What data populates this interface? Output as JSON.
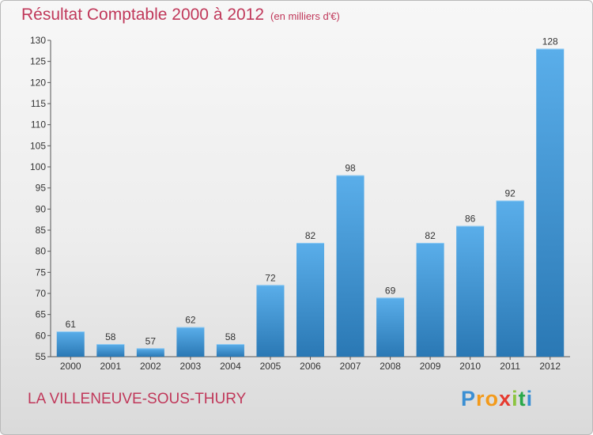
{
  "chart_data": {
    "type": "bar",
    "title": "Résultat Comptable 2000 à 2012",
    "subtitle": "(en milliers d'€)",
    "categories": [
      "2000",
      "2001",
      "2002",
      "2003",
      "2004",
      "2005",
      "2006",
      "2007",
      "2008",
      "2009",
      "2010",
      "2011",
      "2012"
    ],
    "values": [
      61,
      58,
      57,
      62,
      58,
      72,
      82,
      98,
      69,
      82,
      86,
      92,
      128
    ],
    "xlabel": "",
    "ylabel": "",
    "ylim": [
      55,
      130
    ],
    "yticks": [
      55,
      60,
      65,
      70,
      75,
      80,
      85,
      90,
      95,
      100,
      105,
      110,
      115,
      120,
      125,
      130
    ],
    "grid": false
  },
  "footer": {
    "place": "LA VILLENEUVE-SOUS-THURY",
    "logo_letters": [
      "P",
      "r",
      "o",
      "x",
      "i",
      "t",
      "i"
    ]
  },
  "colors": {
    "accent": "#c0385a",
    "bar_top": "#5aaeea",
    "bar_bottom": "#2a78b4",
    "logo": [
      "#3b8fd3",
      "#f39a1a",
      "#f39a1a",
      "#e63a2f",
      "#8bc43f",
      "#2aa84a",
      "#3b8fd3"
    ]
  }
}
